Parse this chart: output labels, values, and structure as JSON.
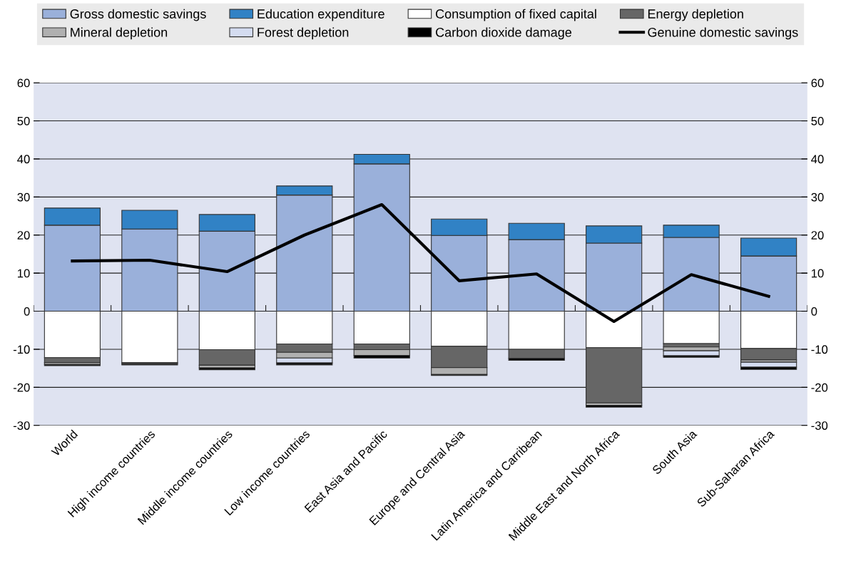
{
  "chart_data": {
    "type": "bar",
    "stacked": true,
    "categories": [
      "World",
      "High income countries",
      "Middle income countries",
      "Low income countries",
      "East Asia and Pacific",
      "Europe and Central Asia",
      "Latin America and Carribean",
      "Middle East and North Africa",
      "South Asia",
      "Sub-Saharan Africa"
    ],
    "series": [
      {
        "name": "Gross domestic savings",
        "color": "#9ab0da",
        "values": [
          22.6,
          21.6,
          21.0,
          30.5,
          38.7,
          19.9,
          18.8,
          17.9,
          19.4,
          14.5
        ]
      },
      {
        "name": "Education expenditure",
        "color": "#3182c5",
        "values": [
          4.5,
          4.9,
          4.4,
          2.4,
          2.5,
          4.3,
          4.3,
          4.5,
          3.2,
          4.7
        ]
      },
      {
        "name": "Consumption of fixed capital",
        "color": "#ffffff",
        "values": [
          -12.2,
          -13.5,
          -10.1,
          -8.6,
          -8.6,
          -9.2,
          -10.0,
          -9.6,
          -8.5,
          -9.8
        ]
      },
      {
        "name": "Energy depletion",
        "color": "#666666",
        "values": [
          -1.3,
          -0.3,
          -4.1,
          -2.2,
          -1.5,
          -5.6,
          -2.4,
          -14.5,
          -0.9,
          -3.0
        ]
      },
      {
        "name": "Mineral depletion",
        "color": "#b0b0b0",
        "values": [
          -0.5,
          null,
          -0.7,
          -1.5,
          -1.5,
          -1.8,
          null,
          -0.6,
          -1.0,
          -0.6
        ]
      },
      {
        "name": "Forest depletion",
        "color": "#d4dcf0",
        "values": [
          null,
          null,
          null,
          -1.3,
          null,
          null,
          null,
          null,
          -1.3,
          -1.3
        ]
      },
      {
        "name": "Carbon dioxide damage",
        "color": "#000000",
        "values": [
          -0.3,
          -0.3,
          -0.5,
          -0.5,
          -0.7,
          -0.3,
          -0.5,
          -0.5,
          -0.4,
          -0.6
        ]
      },
      {
        "name": "Genuine domestic savings",
        "type": "line",
        "color": "#000000",
        "values": [
          13.2,
          13.4,
          10.4,
          20.0,
          28.0,
          8.0,
          9.8,
          -2.7,
          9.6,
          3.9
        ]
      }
    ],
    "ylim": [
      -30,
      60
    ],
    "yticks": [
      -30,
      -20,
      -10,
      0,
      10,
      20,
      30,
      40,
      50,
      60
    ],
    "y2lim": [
      -30,
      60
    ],
    "y2ticks": [
      -30,
      -20,
      -10,
      0,
      10,
      20,
      30,
      40,
      50,
      60
    ],
    "grid": "y",
    "legend": "top",
    "marker": "none",
    "line_style": "solid"
  }
}
